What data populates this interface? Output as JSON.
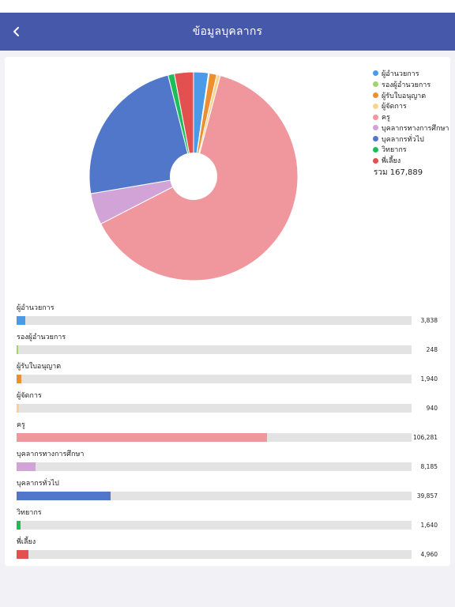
{
  "header": {
    "title": "ข้อมูลบุคลากร",
    "back_icon": "chevron-left-icon"
  },
  "total_label": "รวม 167,889",
  "colors": {
    "header_bg": "#4658a9",
    "track": "#e3e3e3"
  },
  "chart_data": {
    "type": "pie",
    "variant": "donut",
    "legend_position": "top-right",
    "categories": [
      "ผู้อำนวยการ",
      "รองผู้อำนวยการ",
      "ผู้รับใบอนุญาต",
      "ผู้จัดการ",
      "ครู",
      "บุคลากรทางการศึกษา",
      "บุคลากรทั่วไป",
      "วิทยากร",
      "พี่เลี้ยง"
    ],
    "values": [
      3838,
      248,
      1940,
      940,
      106281,
      8185,
      39857,
      1640,
      4960
    ],
    "colors": [
      "#4a9ae8",
      "#9fd36b",
      "#ec8e32",
      "#fad392",
      "#f0979e",
      "#d2a3d6",
      "#5077c9",
      "#1dbd59",
      "#e25050"
    ],
    "value_labels": [
      "3,838",
      "248",
      "1,940",
      "940",
      "106,281",
      "8,185",
      "39,857",
      "1,640",
      "4,960"
    ],
    "bar_max": 167889
  }
}
